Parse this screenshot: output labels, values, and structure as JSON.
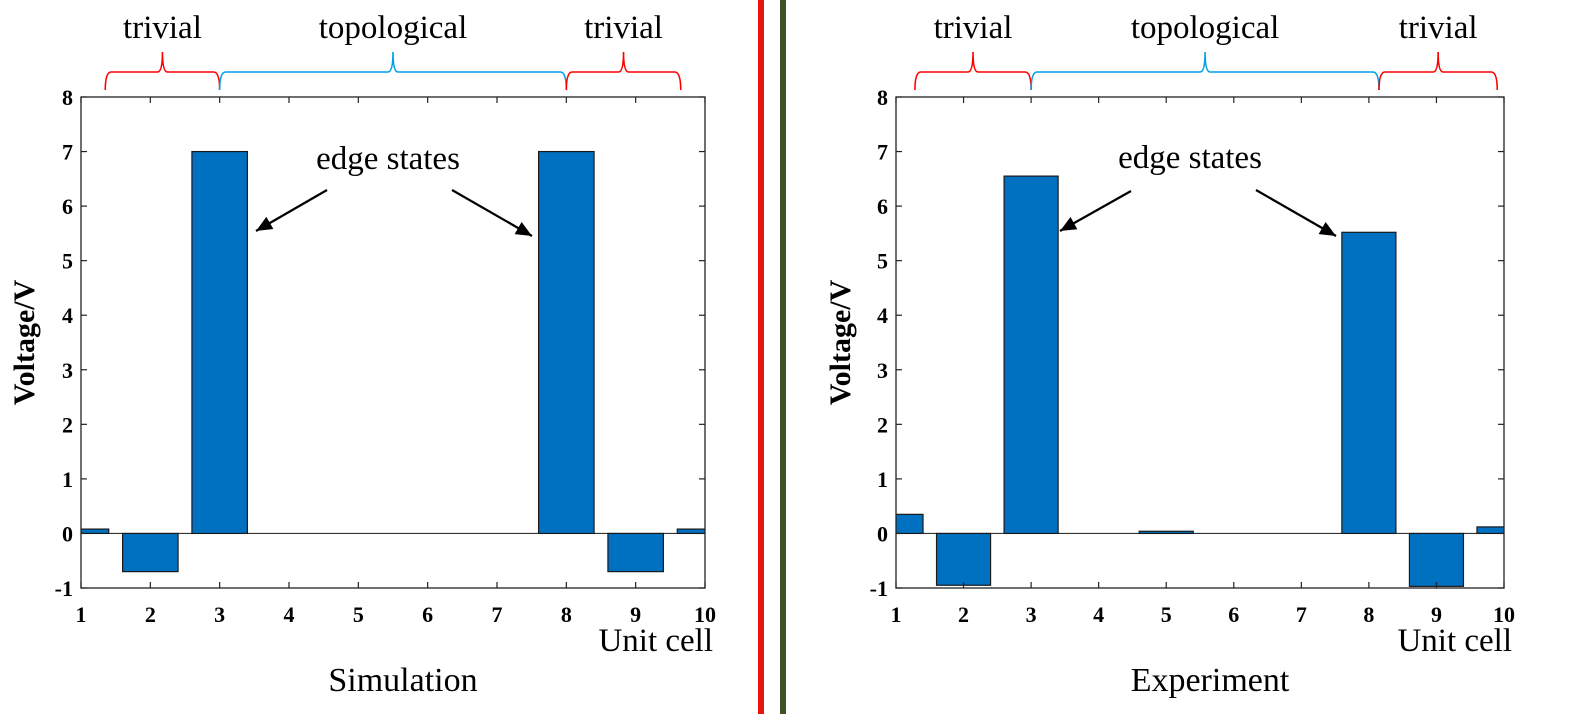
{
  "chart_data": [
    {
      "type": "bar",
      "x": [
        1,
        2,
        3,
        4,
        5,
        6,
        7,
        8,
        9,
        10
      ],
      "values": [
        0.08,
        -0.7,
        7.0,
        0.0,
        0.0,
        0.0,
        0.0,
        7.0,
        -0.7,
        0.08
      ],
      "xlim": [
        1,
        10
      ],
      "ylim": [
        -1,
        8
      ],
      "xticks": [
        "1",
        "2",
        "3",
        "4",
        "5",
        "6",
        "7",
        "8",
        "9",
        "10"
      ],
      "yticks": [
        "-1",
        "0",
        "1",
        "2",
        "3",
        "4",
        "5",
        "6",
        "7",
        "8"
      ],
      "ylabel": "Voltage/V",
      "xlabel": "Unit cell",
      "caption": "Simulation",
      "annotation": "edge states",
      "regions": [
        {
          "label": "trivial",
          "from": 1.35,
          "to": 3.0,
          "color": "#ff0000"
        },
        {
          "label": "topological",
          "from": 3.0,
          "to": 8.0,
          "color": "#00a0e8"
        },
        {
          "label": "trivial",
          "from": 8.0,
          "to": 9.65,
          "color": "#ff0000"
        }
      ],
      "bar_color": "#0070c0",
      "grid": false
    },
    {
      "type": "bar",
      "x": [
        1,
        2,
        3,
        4,
        5,
        6,
        7,
        8,
        9,
        10
      ],
      "values": [
        0.35,
        -0.95,
        6.55,
        0.0,
        0.04,
        0.0,
        0.0,
        5.52,
        -0.97,
        0.12
      ],
      "xlim": [
        1,
        10
      ],
      "ylim": [
        -1,
        8
      ],
      "xticks": [
        "1",
        "2",
        "3",
        "4",
        "5",
        "6",
        "7",
        "8",
        "9",
        "10"
      ],
      "yticks": [
        "-1",
        "0",
        "1",
        "2",
        "3",
        "4",
        "5",
        "6",
        "7",
        "8"
      ],
      "ylabel": "Voltage/V",
      "xlabel": "Unit cell",
      "caption": "Experiment",
      "annotation": "edge states",
      "regions": [
        {
          "label": "trivial",
          "from": 1.28,
          "to": 3.0,
          "color": "#ff0000"
        },
        {
          "label": "topological",
          "from": 3.0,
          "to": 8.15,
          "color": "#00a0e8"
        },
        {
          "label": "trivial",
          "from": 8.15,
          "to": 9.9,
          "color": "#ff0000"
        }
      ],
      "bar_color": "#0070c0",
      "grid": false
    }
  ],
  "colors": {
    "bar": "#0070c0",
    "bar_edge": "#1a1a1a",
    "trivial_brace": "#ff0000",
    "topological_brace": "#00a0e8",
    "divider_red": "#e8150f",
    "divider_green": "#3d5326"
  }
}
